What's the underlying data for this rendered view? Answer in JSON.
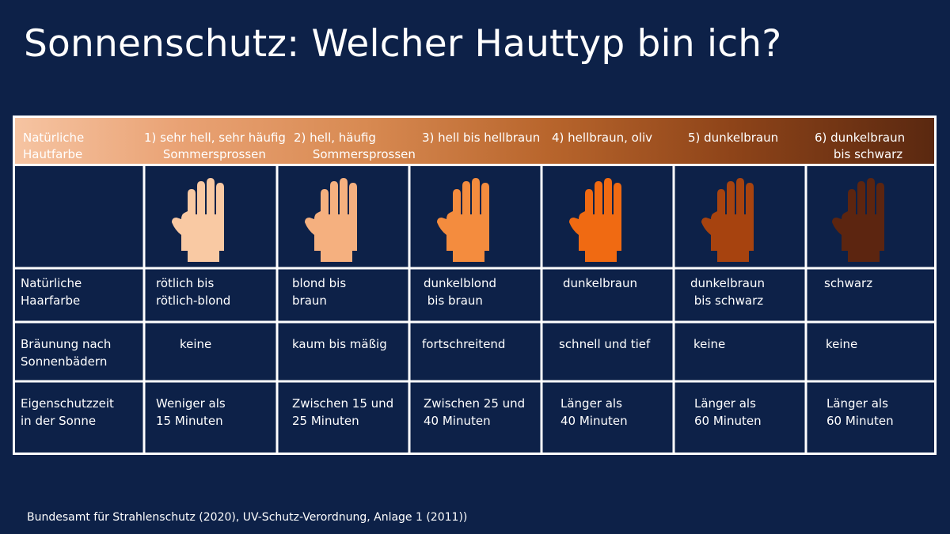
{
  "title": "Sonnenschutz: Welcher Hauttyp bin ich?",
  "header": {
    "row_label": "Natürliche\nHautfarbe",
    "types": [
      "1) sehr hell, sehr häufig\n     Sommersprossen",
      "2) hell, häufig\n     Sommersprossen",
      "3) hell bis hellbraun",
      "4) hellbraun, oliv",
      "5) dunkelbraun",
      "6) dunkelbraun\n     bis schwarz"
    ]
  },
  "hand_colors": [
    "#f9c9a3",
    "#f5b07f",
    "#f48c3e",
    "#f06a12",
    "#a7430f",
    "#5c2510"
  ],
  "hand_icon_name": "hand-icon",
  "rows": [
    {
      "label": "Natürliche\nHaarfarbe",
      "cells": [
        "rötlich bis\nrötlich-blond",
        "blond bis\nbraun",
        "dunkelblond\n bis braun",
        "dunkelbraun",
        "dunkelbraun\n bis schwarz",
        "schwarz"
      ]
    },
    {
      "label": "Bräunung nach\nSonnenbädern",
      "cells": [
        "keine",
        "kaum bis mäßig",
        "fortschreitend",
        "schnell und tief",
        "keine",
        "keine"
      ]
    },
    {
      "label": "Eigenschutzzeit\nin der Sonne",
      "cells": [
        "Weniger als\n15 Minuten",
        "Zwischen 15 und\n25 Minuten",
        "Zwischen 25 und\n40 Minuten",
        "Länger als\n40 Minuten",
        "Länger als\n60 Minuten",
        "Länger als\n60 Minuten"
      ]
    }
  ],
  "source": "Bundesamt für Strahlenschutz (2020), UV-Schutz-Verordnung, Anlage 1 (2011))"
}
